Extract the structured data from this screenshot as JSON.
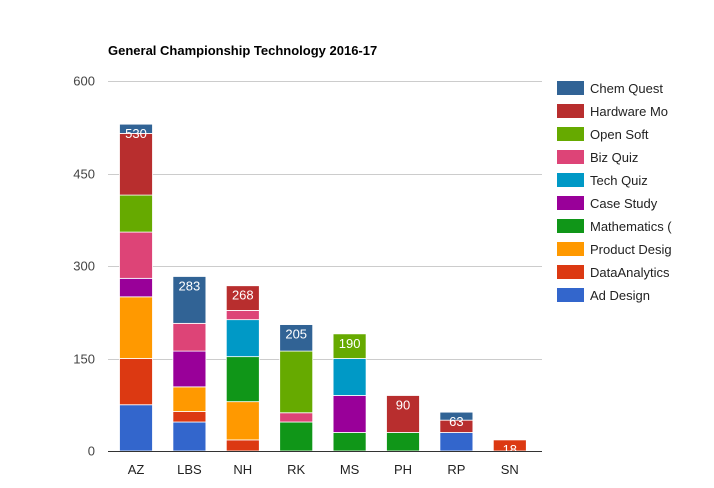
{
  "chart_data": {
    "type": "bar",
    "stacked": true,
    "title": "General Championship Technology 2016-17",
    "xlabel": "",
    "ylabel": "",
    "ylim": [
      0,
      600
    ],
    "yticks": [
      0,
      150,
      300,
      450,
      600
    ],
    "grid": true,
    "legend_position": "right",
    "categories": [
      "AZ",
      "LBS",
      "NH",
      "RK",
      "MS",
      "PH",
      "RP",
      "SN"
    ],
    "series": [
      {
        "name": "Ad Design",
        "color": "#3366cc",
        "values": [
          75,
          47,
          0,
          0,
          0,
          0,
          30,
          0
        ]
      },
      {
        "name": "DataAnalytics",
        "color": "#dc3912",
        "values": [
          75,
          17,
          18,
          0,
          0,
          0,
          0,
          18
        ]
      },
      {
        "name": "Product Design",
        "color": "#ff9900",
        "values": [
          100,
          40,
          62,
          0,
          0,
          0,
          0,
          0
        ]
      },
      {
        "name": "Mathematics",
        "color": "#109618",
        "values": [
          0,
          0,
          73,
          47,
          30,
          30,
          0,
          0
        ]
      },
      {
        "name": "Case Study",
        "color": "#990099",
        "values": [
          30,
          58,
          0,
          0,
          60,
          0,
          0,
          0
        ]
      },
      {
        "name": "Tech Quiz",
        "color": "#0099c6",
        "values": [
          0,
          0,
          60,
          0,
          60,
          0,
          0,
          0
        ]
      },
      {
        "name": "Biz Quiz",
        "color": "#dd4477",
        "values": [
          75,
          45,
          15,
          15,
          0,
          0,
          0,
          0
        ]
      },
      {
        "name": "Open Soft",
        "color": "#66aa00",
        "values": [
          60,
          0,
          0,
          100,
          40,
          0,
          0,
          0
        ]
      },
      {
        "name": "Hardware Modelling",
        "color": "#b82e2e",
        "values": [
          100,
          0,
          40,
          0,
          0,
          60,
          20,
          0
        ]
      },
      {
        "name": "Chem Quest",
        "color": "#316395",
        "values": [
          15,
          76,
          0,
          43,
          0,
          0,
          13,
          0
        ]
      }
    ],
    "totals": [
      530,
      283,
      268,
      205,
      190,
      90,
      63,
      18
    ],
    "legend_labels": [
      "Chem Quest",
      "Hardware Mo",
      "Open Soft",
      "Biz Quiz",
      "Tech Quiz",
      "Case Study",
      "Mathematics (",
      "Product Desig",
      "DataAnalytics",
      "Ad Design"
    ],
    "legend_colors": [
      "#316395",
      "#b82e2e",
      "#66aa00",
      "#dd4477",
      "#0099c6",
      "#990099",
      "#109618",
      "#ff9900",
      "#dc3912",
      "#3366cc"
    ]
  }
}
